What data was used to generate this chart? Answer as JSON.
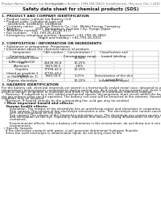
{
  "title": "Safety data sheet for chemical products (SDS)",
  "header_left": "Product Name: Lithium Ion Battery Cell",
  "header_right": "Substance Number: 1999-049-00010  Establishment / Revision: Dec.1.2010",
  "section1_title": "1. PRODUCT AND COMPANY IDENTIFICATION",
  "section1_lines": [
    "  • Product name: Lithium Ion Battery Cell",
    "  • Product code: Cylindrical-type cell",
    "      04186500, 04186600, 04186604",
    "  • Company name:      Sanyo Electric Co., Ltd.  Mobile Energy Company",
    "  • Address:              2001  Kamitokura, Sumoto-City, Hyogo, Japan",
    "  • Telephone number:    +81-799-26-4111",
    "  • Fax number:    +81-799-26-4128",
    "  • Emergency telephone number (daytime): +81-799-26-3862",
    "                                    (Night and holiday): +81-799-26-4101"
  ],
  "section2_title": "2. COMPOSITION / INFORMATION ON INGREDIENTS",
  "section2_lines": [
    "  • Substance or preparation: Preparation",
    "  • Information about the chemical nature of product:"
  ],
  "table_headers": [
    "Component\nCommon name",
    "CAS number",
    "Concentration /\nConcentration range",
    "Classification and\nhazard labeling"
  ],
  "table_rows": [
    [
      "Lithium cobalt oxide\n(LiMnxCoyNizO2)",
      "-",
      "30-60%",
      "-"
    ],
    [
      "Iron",
      "26438-96-8",
      "10-25%",
      "-"
    ],
    [
      "Aluminum",
      "7429-90-5",
      "2-8%",
      "-"
    ],
    [
      "Graphite\n(listed as graphite-1\nor flake graphite-1)",
      "77958-42-5\n17791-44-2",
      "10-25%",
      "-"
    ],
    [
      "Copper",
      "7440-50-8",
      "5-15%",
      "Sensitization of the skin\ngroup No.2"
    ],
    [
      "Organic electrolyte",
      "-",
      "10-20%",
      "Inflammable liquid"
    ]
  ],
  "section3_title": "3. HAZARDS IDENTIFICATION",
  "section3_body": [
    "For the battery cell, chemical materials are stored in a hermetically sealed metal case, designed to withstand",
    "temperatures and pressures-combinations during normal use. As a result, during normal use, there is no",
    "physical danger of ignition or explosion and there is no danger of hazardous materials leakage.",
    "    However, if subjected to a fire, added mechanical shocks, decomposed, short-circuit within the battery case,",
    "the gas release valve can be operated. The battery cell case will be breached at the extreme. Hazardous",
    "materials may be released.",
    "    Moreover, if heated strongly by the surrounding fire, acid gas may be emitted."
  ],
  "section3_bullet1": "  • Most important hazard and effects:",
  "section3_human": "    Human health effects:",
  "section3_human_body": [
    "        Inhalation: The release of the electrolyte has an anesthesia action and stimulates in respiratory tract.",
    "        Skin contact: The release of the electrolyte stimulates a skin. The electrolyte skin contact causes a",
    "        sore and stimulation on the skin.",
    "        Eye contact: The release of the electrolyte stimulates eyes. The electrolyte eye contact causes a sore",
    "        and stimulation on the eye. Especially, substance that causes a strong inflammation of the eye is",
    "        contained.",
    "",
    "        Environmental effects: Since a battery cell remains in the environment, do not throw out it into the",
    "        environment."
  ],
  "section3_specific": [
    "  • Specific hazards:",
    "    If the electrolyte contacts with water, it will generate detrimental hydrogen fluoride.",
    "    Since the used electrolyte is inflammable liquid, do not bring close to fire."
  ],
  "bg_color": "#ffffff",
  "text_color": "#1a1a1a",
  "table_line_color": "#999999"
}
